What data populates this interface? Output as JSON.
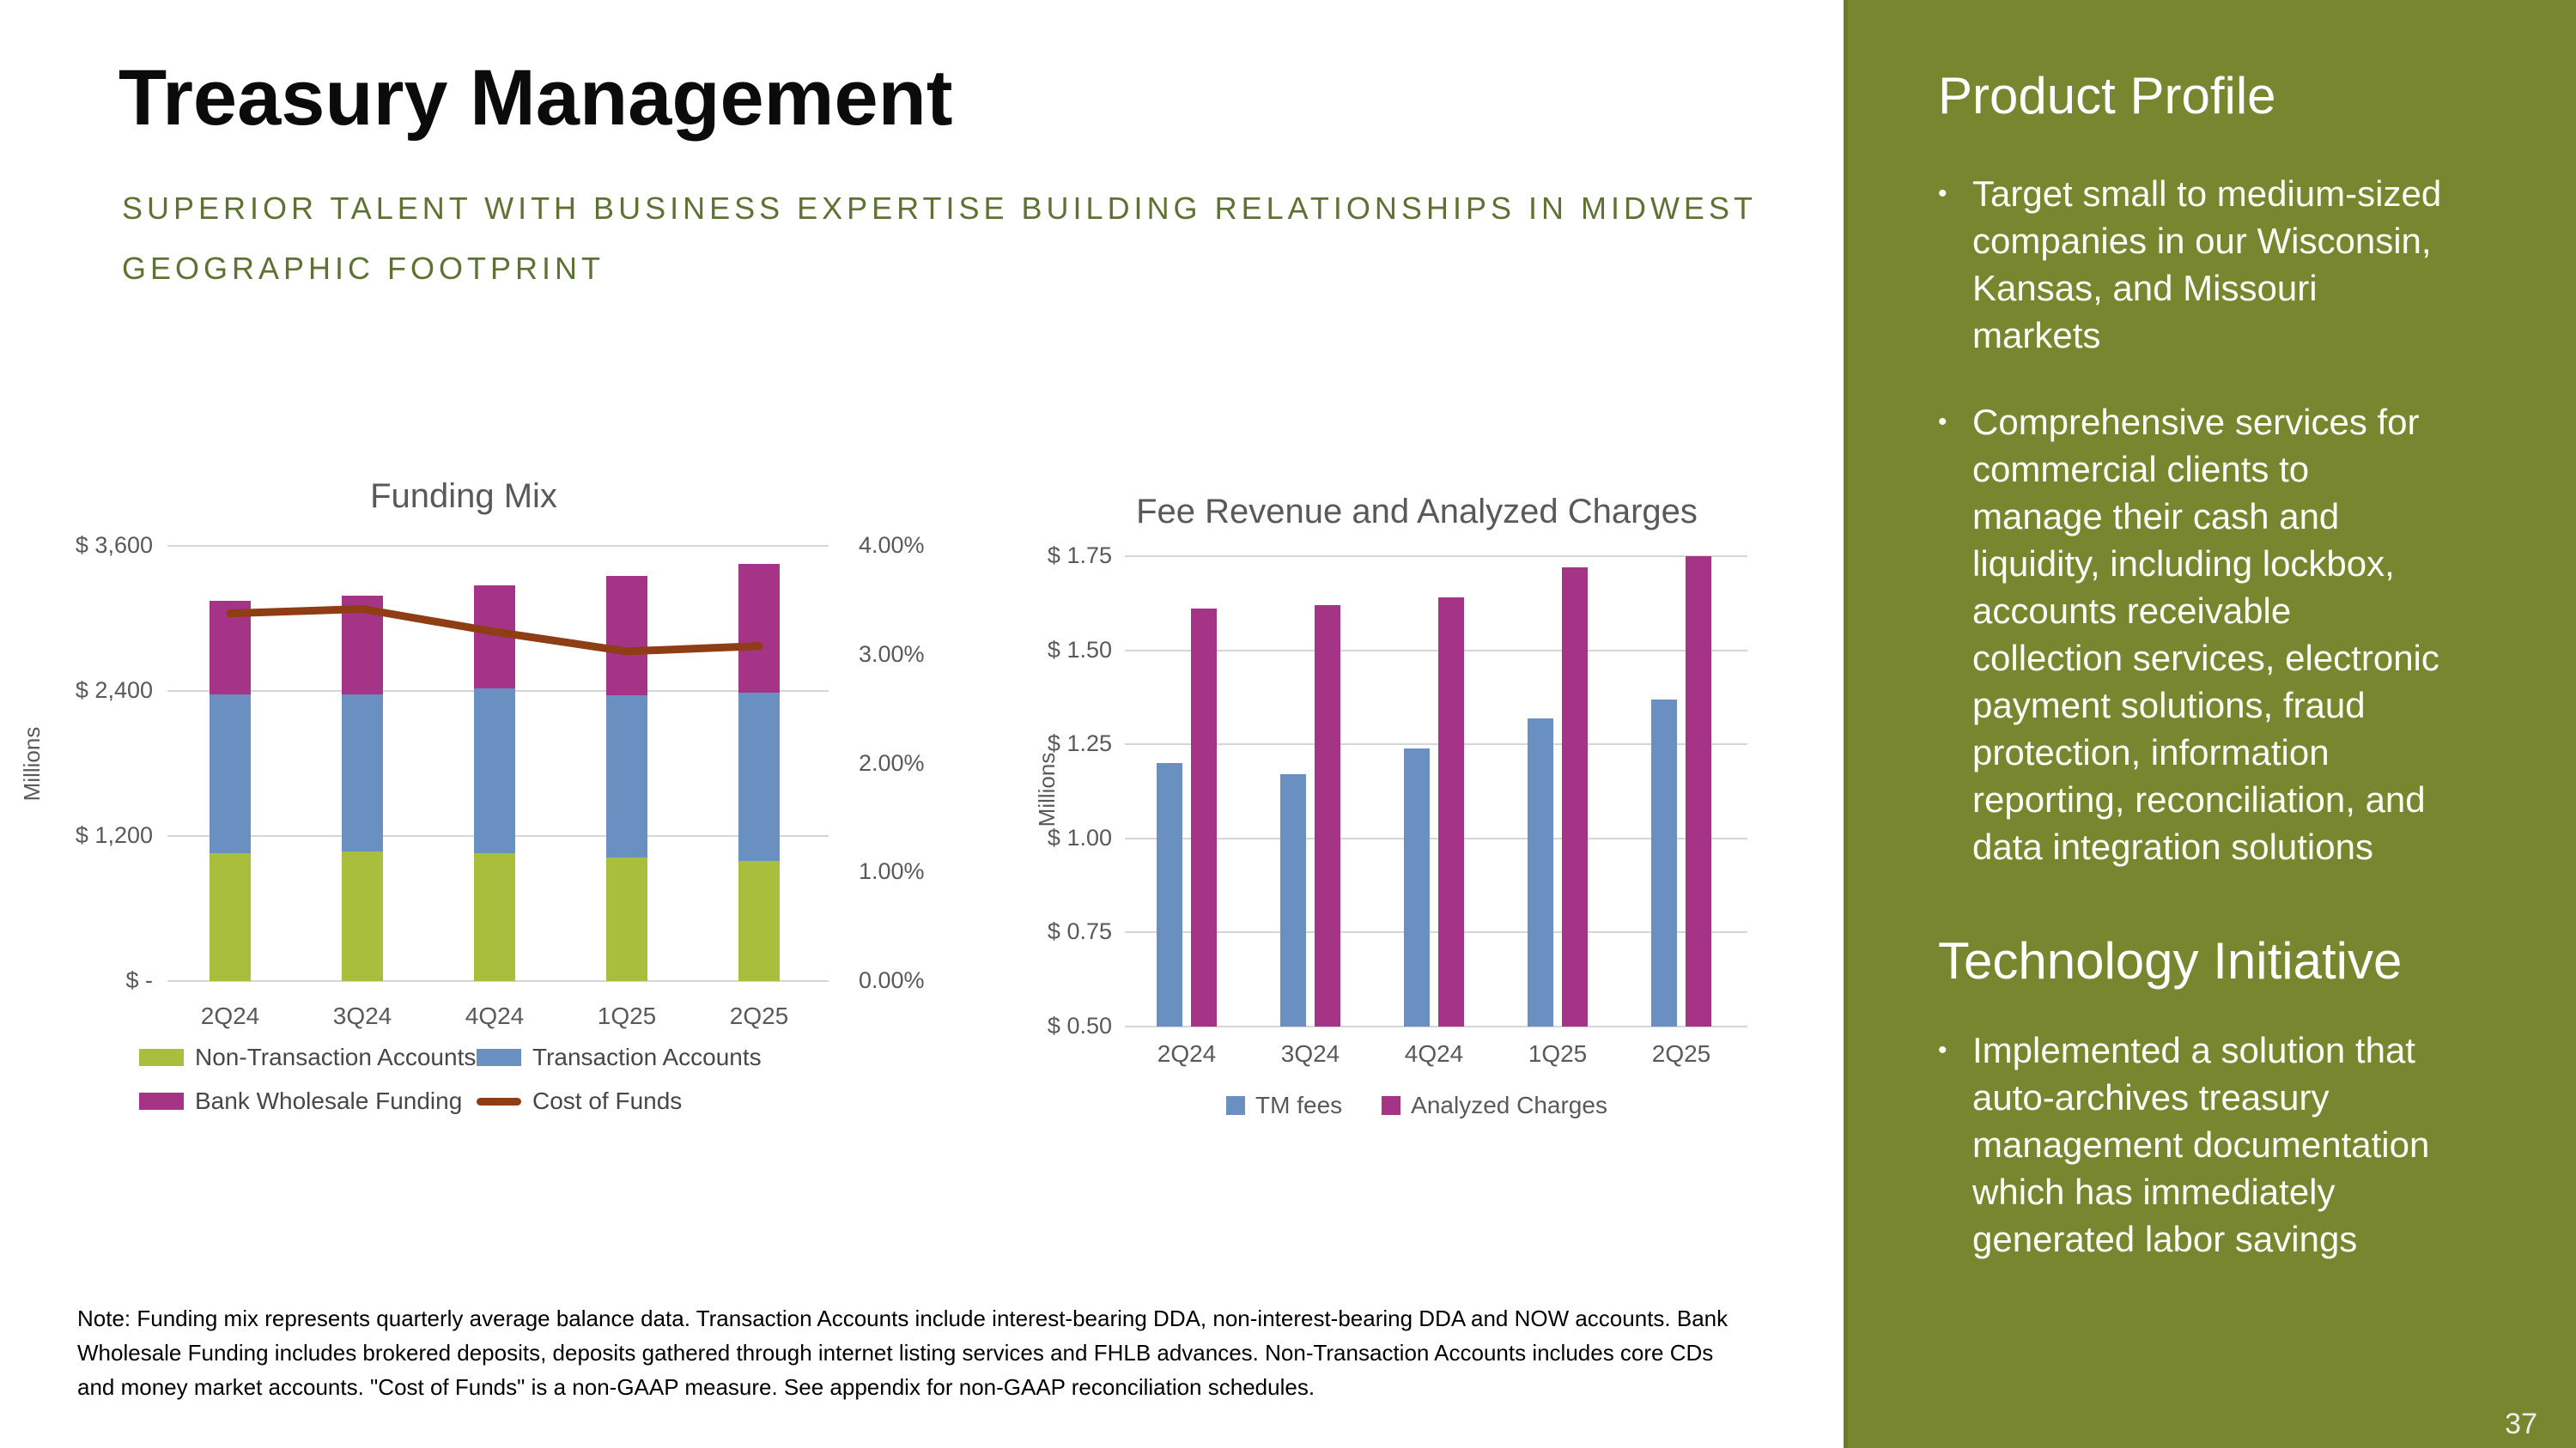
{
  "slide": {
    "title": "Treasury Management",
    "subtitle_line1": "SUPERIOR TALENT WITH BUSINESS EXPERTISE BUILDING RELATIONSHIPS IN MIDWEST",
    "subtitle_line2": "GEOGRAPHIC FOOTPRINT",
    "note": "Note: Funding mix represents quarterly average balance data. Transaction Accounts include interest-bearing DDA, non-interest-bearing DDA and NOW accounts. Bank Wholesale Funding includes brokered deposits, deposits gathered through internet listing services and FHLB advances. Non-Transaction Accounts includes core CDs and money market accounts. \"Cost of Funds\" is a non-GAAP measure. See appendix for non-GAAP reconciliation schedules.",
    "page_number": "37"
  },
  "colors": {
    "accent_olive_text": "#5E7233",
    "sidebar_green": "#77862F",
    "chart_text_gray": "#595959",
    "gridline_gray": "#D6D6D6",
    "bar_green": "#A9BE3C",
    "bar_blue": "#6990C0",
    "bar_magenta": "#A53487",
    "line_brown": "#8E3D15"
  },
  "sidebar": {
    "background": "#77862F",
    "sections": [
      {
        "heading": "Product Profile",
        "bullets": [
          "Target small to medium-sized companies in our Wisconsin, Kansas, and Missouri markets",
          "Comprehensive services for commercial clients to manage their cash and liquidity, including lockbox, accounts receivable collection services, electronic payment solutions, fraud protection, information reporting, reconciliation, and data integration solutions"
        ]
      },
      {
        "heading": "Technology Initiative",
        "bullets": [
          "Implemented a solution that auto-archives treasury management documentation which has immediately generated labor savings"
        ]
      }
    ]
  },
  "chart_data": [
    {
      "type": "bar",
      "subtype": "stacked-columns-with-line-overlay",
      "title": "Funding Mix",
      "categories": [
        "2Q24",
        "3Q24",
        "4Q24",
        "1Q25",
        "2Q25"
      ],
      "series": [
        {
          "name": "Non-Transaction Accounts",
          "color": "#A9BE3C",
          "values": [
            1060,
            1075,
            1055,
            1025,
            995
          ]
        },
        {
          "name": "Transaction Accounts",
          "color": "#6990C0",
          "values": [
            1315,
            1300,
            1365,
            1340,
            1390
          ]
        },
        {
          "name": "Bank Wholesale Funding",
          "color": "#A53487",
          "values": [
            770,
            810,
            855,
            985,
            1065
          ]
        }
      ],
      "line_series": {
        "name": "Cost of Funds",
        "color": "#8E3D15",
        "values": [
          3.38,
          3.42,
          3.21,
          3.03,
          3.08
        ]
      },
      "left_axis": {
        "label": "Millions",
        "min": 0,
        "max": 3600,
        "ticks": [
          {
            "value": 3600,
            "label": "$ 3,600"
          },
          {
            "value": 2400,
            "label": "$ 2,400"
          },
          {
            "value": 1200,
            "label": "$ 1,200"
          },
          {
            "value": 0,
            "label": "$ -"
          }
        ]
      },
      "right_axis": {
        "min": 0,
        "max": 4,
        "ticks": [
          {
            "value": 4,
            "label": "4.00%"
          },
          {
            "value": 3,
            "label": "3.00%"
          },
          {
            "value": 2,
            "label": "2.00%"
          },
          {
            "value": 1,
            "label": "1.00%"
          },
          {
            "value": 0,
            "label": "0.00%"
          }
        ]
      },
      "grid": true,
      "legend_position": "bottom"
    },
    {
      "type": "bar",
      "subtype": "grouped-columns",
      "title": "Fee Revenue and Analyzed Charges",
      "categories": [
        "2Q24",
        "3Q24",
        "4Q24",
        "1Q25",
        "2Q25"
      ],
      "series": [
        {
          "name": "TM fees",
          "color": "#6990C0",
          "values": [
            1.2,
            1.17,
            1.24,
            1.32,
            1.37
          ]
        },
        {
          "name": "Analyzed Charges",
          "color": "#A53487",
          "values": [
            1.61,
            1.62,
            1.64,
            1.72,
            1.75
          ]
        }
      ],
      "y_axis": {
        "label": "Millions",
        "min": 0.5,
        "max": 1.75,
        "ticks": [
          {
            "value": 1.75,
            "label": "$ 1.75"
          },
          {
            "value": 1.5,
            "label": "$ 1.50"
          },
          {
            "value": 1.25,
            "label": "$ 1.25"
          },
          {
            "value": 1.0,
            "label": "$ 1.00"
          },
          {
            "value": 0.75,
            "label": "$ 0.75"
          },
          {
            "value": 0.5,
            "label": "$ 0.50"
          }
        ]
      },
      "grid": true,
      "legend_position": "bottom"
    }
  ]
}
